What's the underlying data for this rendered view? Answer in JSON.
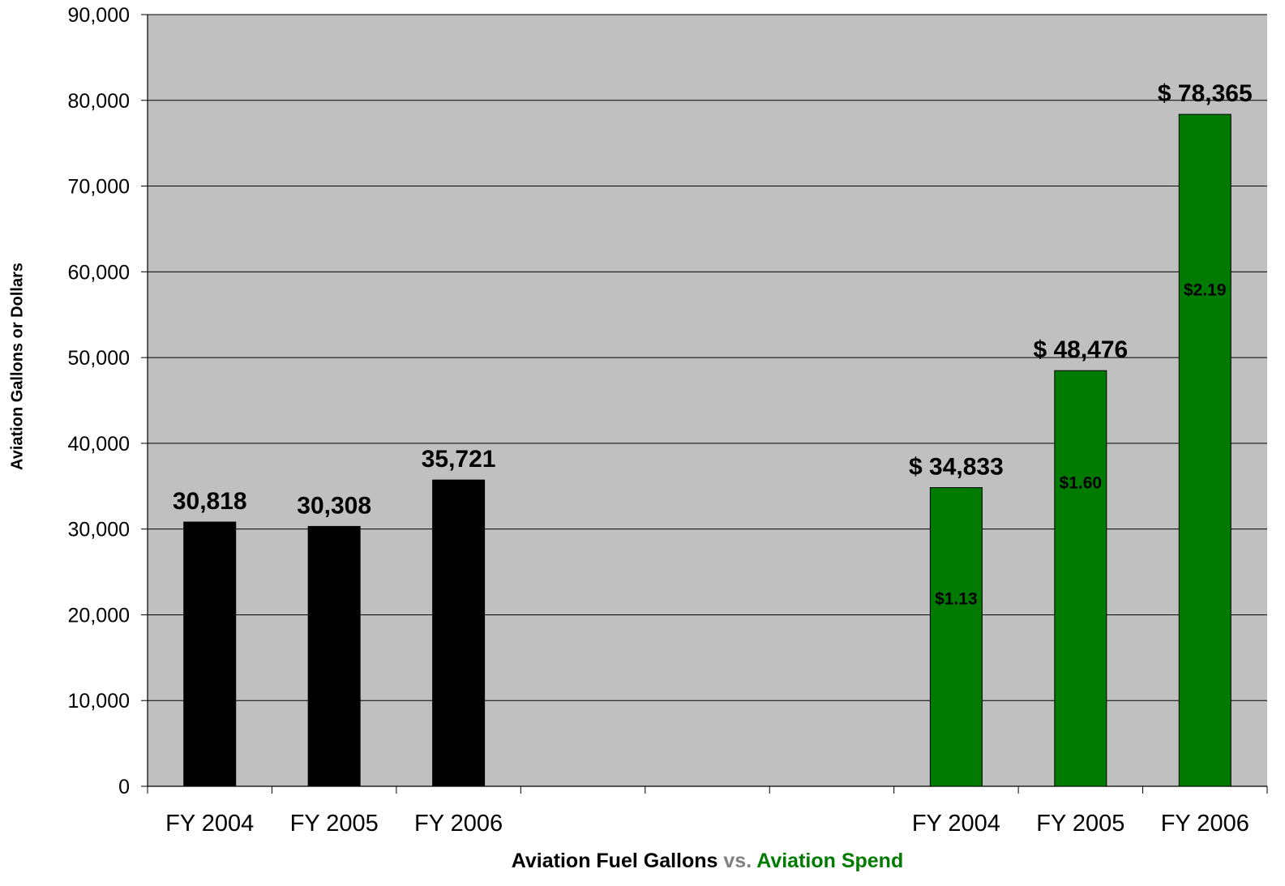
{
  "chart_data": {
    "type": "bar",
    "ylabel": "Aviation Gallons or Dollars",
    "xlabel": {
      "part1": "Aviation Fuel Gallons",
      "part2": "vs.",
      "part3": "Aviation Spend"
    },
    "ylim": [
      0,
      90000
    ],
    "yticks": [
      "0",
      "10,000",
      "20,000",
      "30,000",
      "40,000",
      "50,000",
      "60,000",
      "70,000",
      "80,000",
      "90,000"
    ],
    "grid": true,
    "plot_background": "#c0c0c0",
    "slots": 9,
    "series": [
      {
        "color": "#000000",
        "slots": [
          0,
          1,
          2
        ],
        "categories": [
          "FY 2004",
          "FY 2005",
          "FY 2006"
        ],
        "values": [
          30818,
          30308,
          35721
        ],
        "labels": [
          "30,818",
          "30,308",
          "35,721"
        ]
      },
      {
        "color": "#007a00",
        "slots": [
          6,
          7,
          8
        ],
        "categories": [
          "FY 2004",
          "FY 2005",
          "FY 2006"
        ],
        "values": [
          34833,
          48476,
          78365
        ],
        "labels": [
          "$ 34,833",
          "$ 48,476",
          "$ 78,365"
        ],
        "inner_labels": [
          "$1.13",
          "$1.60",
          "$2.19"
        ],
        "inner_label_values": [
          22000,
          35500,
          58000
        ]
      }
    ]
  }
}
